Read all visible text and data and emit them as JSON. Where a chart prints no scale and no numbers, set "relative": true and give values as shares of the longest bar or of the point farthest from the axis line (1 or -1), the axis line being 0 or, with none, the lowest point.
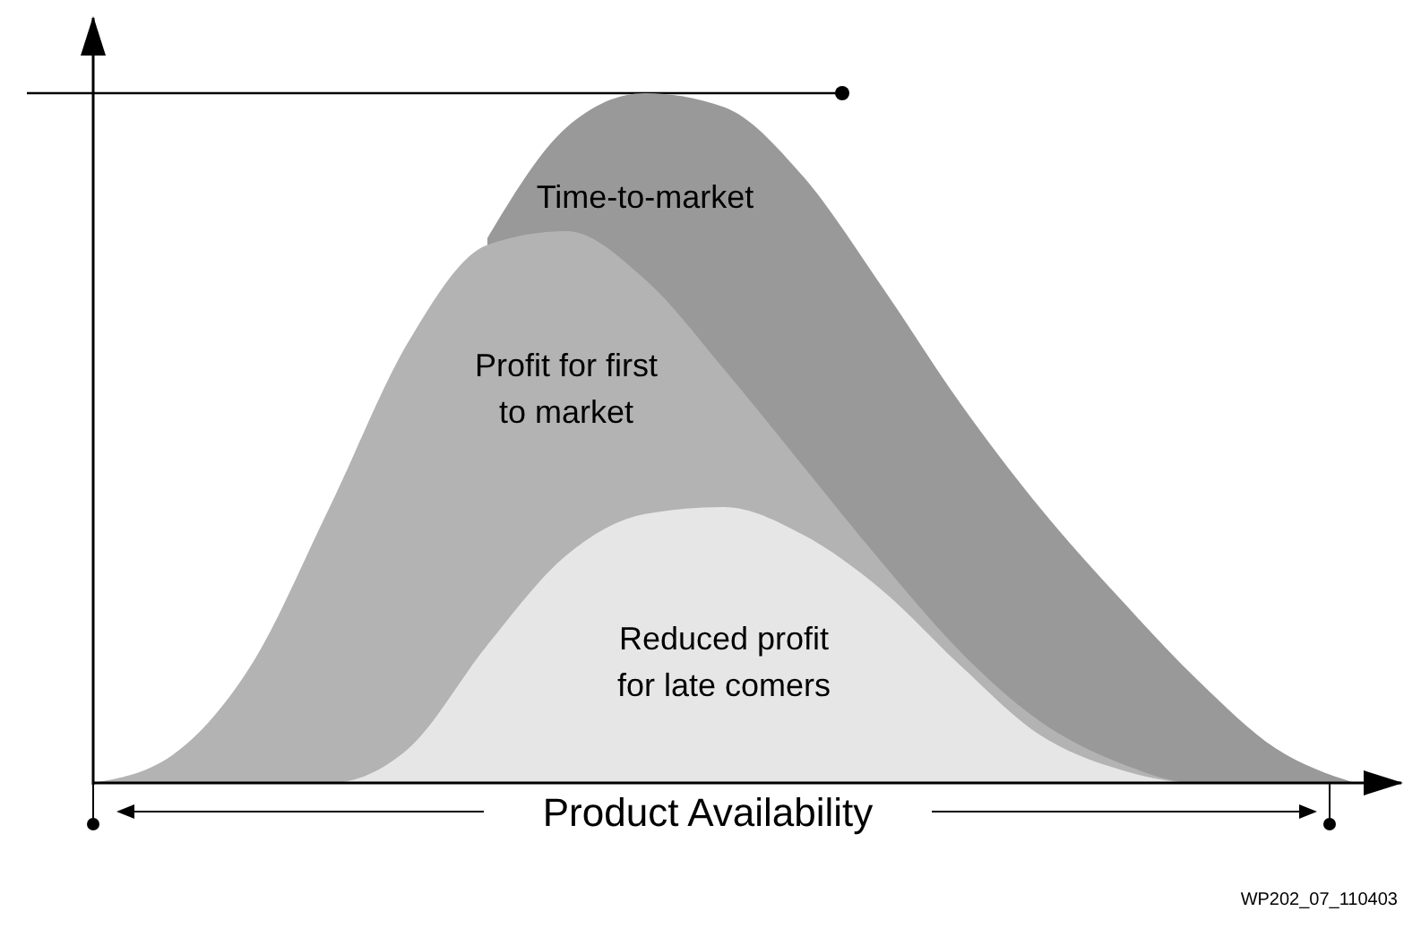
{
  "chart_data": {
    "type": "area",
    "relative": true,
    "xlabel": "Product Availability",
    "categories": [
      null,
      null,
      null,
      null,
      null,
      null,
      null,
      null,
      null,
      null,
      null,
      null,
      null,
      null,
      null,
      null,
      null
    ],
    "series": [
      {
        "name": "Time-to-market",
        "color": "#999999",
        "values": [
          0,
          0,
          null,
          null,
          null,
          0.79,
          0.95,
          1.0,
          0.98,
          0.88,
          0.72,
          0.55,
          0.4,
          0.27,
          0.15,
          0.05,
          0
        ]
      },
      {
        "name": "Profit for first\nto market",
        "color": "#b3b3b3",
        "values": [
          0,
          0.04,
          0.17,
          0.4,
          0.64,
          0.78,
          0.8,
          0.73,
          0.6,
          0.46,
          0.32,
          0.19,
          0.09,
          0.03,
          0,
          0,
          0
        ]
      },
      {
        "name": "Reduced profit\nfor late comers",
        "color": "#e6e6e6",
        "values": [
          0,
          0,
          0,
          0,
          0.05,
          0.2,
          0.33,
          0.39,
          0.4,
          0.36,
          0.28,
          0.17,
          0.07,
          0.02,
          0,
          0,
          0
        ]
      }
    ],
    "ref_lines": [
      {
        "axis": "y",
        "value": 1
      }
    ],
    "annotations": [
      "WP202_07_110403"
    ]
  }
}
